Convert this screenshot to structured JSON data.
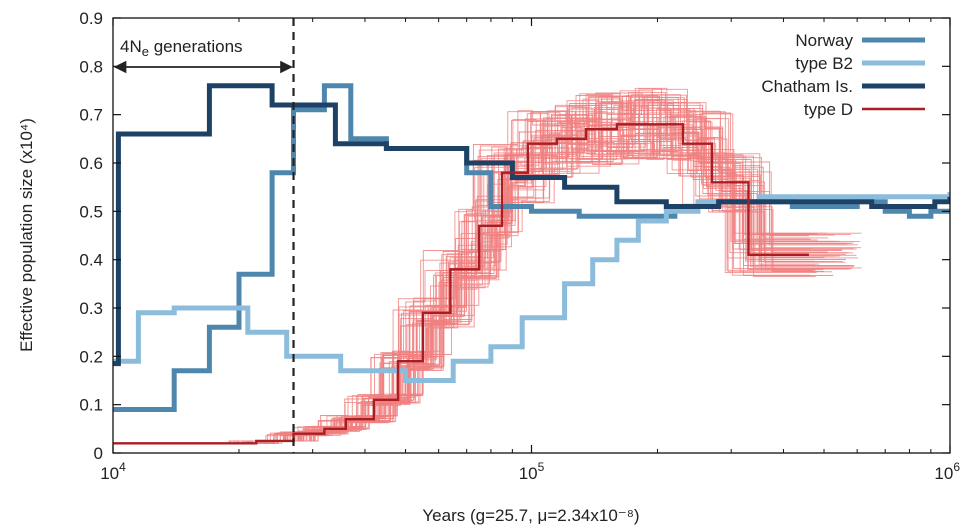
{
  "chart_data": {
    "type": "line",
    "xlabel": "Years (g=25.7, μ=2.34x10⁻⁸)",
    "ylabel": "Effective population size (x10⁴)",
    "xscale": "log",
    "xlim": [
      10000,
      1000000
    ],
    "ylim": [
      0,
      0.9
    ],
    "x_ticks": [
      10000,
      100000,
      1000000
    ],
    "x_tick_labels": [
      {
        "base": "10",
        "exp": "4"
      },
      {
        "base": "10",
        "exp": "5"
      },
      {
        "base": "10",
        "exp": "6"
      }
    ],
    "y_ticks": [
      0,
      0.1,
      0.2,
      0.3,
      0.4,
      0.5,
      0.6,
      0.7,
      0.8,
      0.9
    ],
    "y_tick_labels": [
      "0",
      "0.1",
      "0.2",
      "0.3",
      "0.4",
      "0.5",
      "0.6",
      "0.7",
      "0.8",
      "0.9"
    ],
    "legend_position": "top-right",
    "annotation": {
      "text_prefix": "4N",
      "text_sub": "e",
      "text_suffix": " generations",
      "x": 27000
    },
    "series": [
      {
        "name": "Norway",
        "color": "#4e87ae",
        "step": true,
        "x": [
          10000,
          14000,
          17000,
          20000,
          24000,
          27000,
          32000,
          37000,
          45000,
          70000,
          80000,
          100000,
          130000,
          160000,
          220000,
          280000,
          350000,
          420000,
          500000,
          600000,
          700000,
          800000,
          900000,
          1000000
        ],
        "y": [
          0.09,
          0.17,
          0.26,
          0.37,
          0.58,
          0.71,
          0.76,
          0.65,
          0.63,
          0.58,
          0.51,
          0.5,
          0.49,
          0.49,
          0.51,
          0.52,
          0.52,
          0.51,
          0.51,
          0.52,
          0.5,
          0.49,
          0.5,
          0.5
        ]
      },
      {
        "name": "type B2",
        "color": "#8bbcdc",
        "step": true,
        "x": [
          10000,
          11500,
          14000,
          17000,
          21000,
          26000,
          35000,
          50000,
          65000,
          80000,
          95000,
          120000,
          140000,
          160000,
          180000,
          210000,
          250000,
          350000,
          500000,
          700000,
          1000000
        ],
        "y": [
          0.19,
          0.29,
          0.3,
          0.3,
          0.25,
          0.2,
          0.17,
          0.15,
          0.19,
          0.22,
          0.28,
          0.35,
          0.4,
          0.44,
          0.48,
          0.5,
          0.52,
          0.53,
          0.53,
          0.53,
          0.54
        ]
      },
      {
        "name": "Chatham Is.",
        "color": "#1d4266",
        "step": true,
        "x": [
          10000,
          10300,
          17000,
          24000,
          34000,
          45000,
          70000,
          90000,
          120000,
          160000,
          210000,
          280000,
          400000,
          500000,
          650000,
          800000,
          920000,
          1000000
        ],
        "y": [
          0.185,
          0.66,
          0.76,
          0.72,
          0.64,
          0.63,
          0.6,
          0.57,
          0.55,
          0.52,
          0.51,
          0.52,
          0.52,
          0.52,
          0.51,
          0.51,
          0.52,
          0.53
        ]
      },
      {
        "name": "type D",
        "color": "#a81e23",
        "step": true,
        "x": [
          10000,
          18000,
          22000,
          27000,
          32000,
          36000,
          42000,
          48000,
          55000,
          64000,
          75000,
          85000,
          98000,
          115000,
          135000,
          160000,
          190000,
          230000,
          270000,
          330000,
          460000
        ],
        "y": [
          0.02,
          0.02,
          0.025,
          0.04,
          0.05,
          0.07,
          0.11,
          0.19,
          0.29,
          0.38,
          0.47,
          0.58,
          0.64,
          0.65,
          0.67,
          0.68,
          0.68,
          0.64,
          0.56,
          0.41,
          0.41
        ]
      }
    ],
    "bootstrap": {
      "color": "#f08080",
      "replicates": 60
    }
  }
}
